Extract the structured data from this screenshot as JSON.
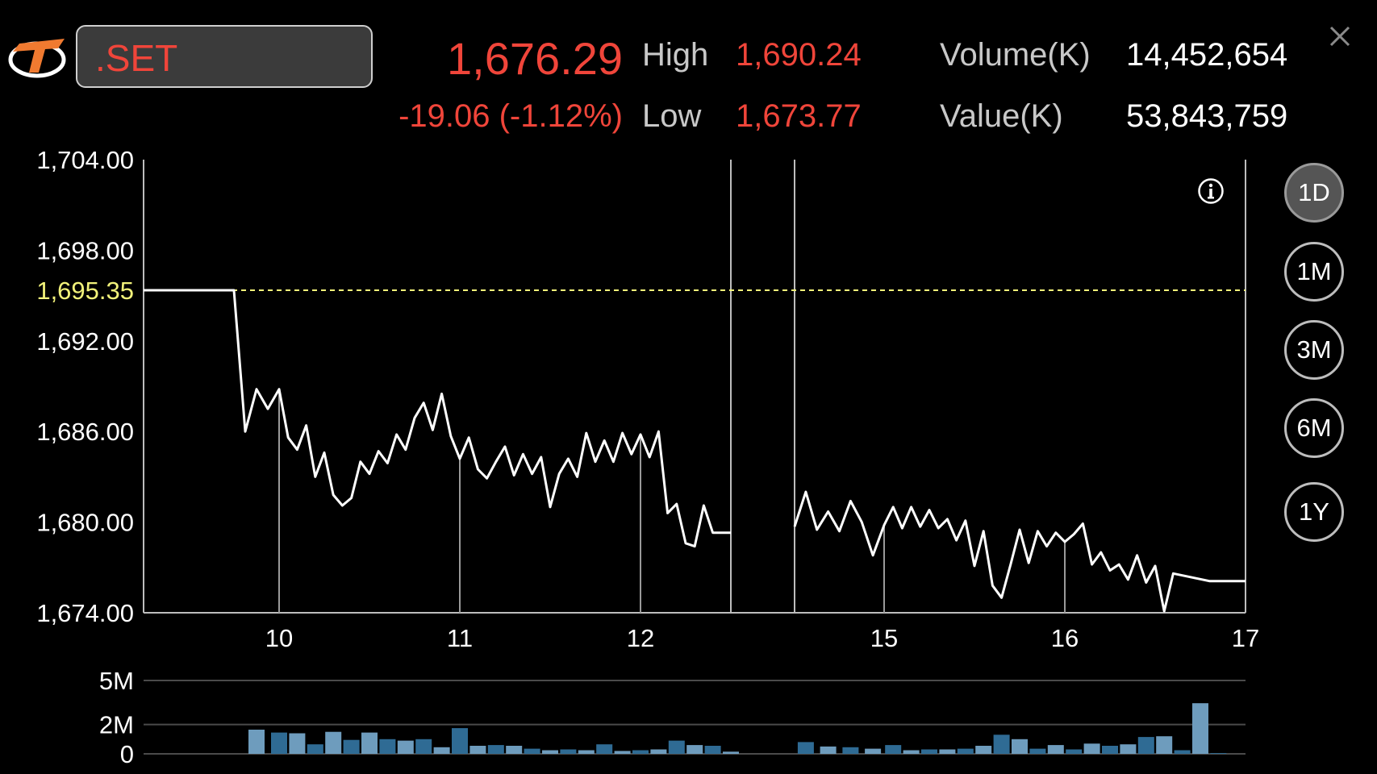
{
  "header": {
    "symbol": ".SET",
    "last": "1,676.29",
    "change": "-19.06 (-1.12%)",
    "high_label": "High",
    "high": "1,690.24",
    "low_label": "Low",
    "low": "1,673.77",
    "volume_label": "Volume(K)",
    "volume": "14,452,654",
    "value_label": "Value(K)",
    "value": "53,843,759"
  },
  "icons": {
    "logo": "brand-logo-icon",
    "close": "close-icon",
    "info": "info-icon"
  },
  "periods": [
    {
      "label": "1D",
      "active": true
    },
    {
      "label": "1M",
      "active": false
    },
    {
      "label": "3M",
      "active": false
    },
    {
      "label": "6M",
      "active": false
    },
    {
      "label": "1Y",
      "active": false
    }
  ],
  "colors": {
    "down": "#f0453a",
    "reference": "#f2f27a",
    "line": "#ffffff",
    "volume_dark": "#2f6b94",
    "volume_light": "#6e9cbd"
  },
  "chart_data": [
    {
      "type": "line",
      "title": "",
      "x_tick_labels": [
        "10",
        "11",
        "12",
        "15",
        "16",
        "17"
      ],
      "y_tick_labels": [
        "1,704.00",
        "1,698.00",
        "1,692.00",
        "1,686.00",
        "1,680.00",
        "1,674.00"
      ],
      "ylim": [
        1674,
        1704
      ],
      "reference_line": {
        "label": "1,695.35",
        "value": 1695.35,
        "style": "dashed"
      },
      "grid": false,
      "series": [
        {
          "segments": [
            {
              "x": [
                9.4,
                9.6,
                9.8,
                9.85,
                9.9,
                9.95,
                10.0,
                10.05,
                10.1,
                10.15,
                10.2,
                10.25,
                10.3,
                10.35,
                10.4,
                10.45,
                10.5,
                10.55,
                10.6,
                10.65,
                10.7,
                10.75,
                10.8,
                10.85,
                10.9,
                10.95,
                11.0,
                11.05,
                11.1,
                11.15,
                11.2,
                11.25,
                11.3,
                11.35,
                11.4,
                11.45,
                11.5,
                11.55,
                11.6,
                11.65,
                11.7,
                11.75,
                11.8,
                11.85,
                11.9,
                11.95,
                12.0,
                12.05,
                12.1,
                12.15,
                12.2,
                12.25,
                12.3,
                12.35,
                12.4,
                12.5
              ],
              "y": [
                1695.35,
                1695.35,
                1695.35,
                1686.0,
                1688.8,
                1687.5,
                1688.8,
                1685.6,
                1684.8,
                1686.4,
                1683.0,
                1684.6,
                1681.8,
                1681.1,
                1681.6,
                1684.0,
                1683.2,
                1684.7,
                1683.9,
                1685.8,
                1684.8,
                1686.9,
                1687.9,
                1686.1,
                1688.5,
                1685.7,
                1684.2,
                1685.6,
                1683.5,
                1682.9,
                1684.0,
                1685.0,
                1683.1,
                1684.5,
                1683.2,
                1684.3,
                1681.0,
                1683.2,
                1684.2,
                1683.0,
                1685.9,
                1684.0,
                1685.4,
                1684.0,
                1685.9,
                1684.5,
                1685.8,
                1684.3,
                1686.0,
                1680.6,
                1681.2,
                1678.6,
                1678.4,
                1681.1,
                1679.3,
                1679.3
              ]
            },
            {
              "x": [
                14.6,
                14.65,
                14.7,
                14.75,
                14.8,
                14.85,
                14.9,
                14.95,
                15.0,
                15.05,
                15.1,
                15.15,
                15.2,
                15.25,
                15.3,
                15.35,
                15.4,
                15.45,
                15.5,
                15.55,
                15.6,
                15.65,
                15.7,
                15.75,
                15.8,
                15.85,
                15.9,
                15.95,
                16.0,
                16.05,
                16.1,
                16.15,
                16.2,
                16.25,
                16.3,
                16.35,
                16.4,
                16.45,
                16.5,
                16.55,
                16.6,
                16.8,
                17.0
              ],
              "y": [
                1679.7,
                1682.0,
                1679.5,
                1680.7,
                1679.4,
                1681.4,
                1680.0,
                1677.8,
                1679.8,
                1681.0,
                1679.6,
                1681.0,
                1679.7,
                1680.8,
                1679.6,
                1680.2,
                1678.8,
                1680.1,
                1677.1,
                1679.4,
                1675.8,
                1675.0,
                1677.2,
                1679.5,
                1677.3,
                1679.4,
                1678.4,
                1679.3,
                1678.7,
                1679.2,
                1679.9,
                1677.2,
                1678.0,
                1676.8,
                1677.2,
                1676.2,
                1677.8,
                1676.0,
                1677.1,
                1674.1,
                1676.6,
                1676.1,
                1676.1
              ]
            }
          ]
        }
      ]
    },
    {
      "type": "bar",
      "title": "",
      "y_tick_labels": [
        "5M",
        "2M",
        "0"
      ],
      "ylim": [
        0,
        5
      ],
      "grid": true,
      "bars": [
        {
          "x": 9.9,
          "v": 1.65
        },
        {
          "x": 10.0,
          "v": 1.45
        },
        {
          "x": 10.1,
          "v": 1.4
        },
        {
          "x": 10.2,
          "v": 0.65
        },
        {
          "x": 10.3,
          "v": 1.5
        },
        {
          "x": 10.4,
          "v": 0.95
        },
        {
          "x": 10.5,
          "v": 1.45
        },
        {
          "x": 10.6,
          "v": 1.0
        },
        {
          "x": 10.7,
          "v": 0.9
        },
        {
          "x": 10.8,
          "v": 1.0
        },
        {
          "x": 10.9,
          "v": 0.45
        },
        {
          "x": 11.0,
          "v": 1.75
        },
        {
          "x": 11.1,
          "v": 0.55
        },
        {
          "x": 11.2,
          "v": 0.6
        },
        {
          "x": 11.3,
          "v": 0.55
        },
        {
          "x": 11.4,
          "v": 0.35
        },
        {
          "x": 11.5,
          "v": 0.25
        },
        {
          "x": 11.6,
          "v": 0.3
        },
        {
          "x": 11.7,
          "v": 0.25
        },
        {
          "x": 11.8,
          "v": 0.65
        },
        {
          "x": 11.9,
          "v": 0.2
        },
        {
          "x": 12.0,
          "v": 0.25
        },
        {
          "x": 12.1,
          "v": 0.3
        },
        {
          "x": 12.2,
          "v": 0.9
        },
        {
          "x": 12.3,
          "v": 0.6
        },
        {
          "x": 12.4,
          "v": 0.55
        },
        {
          "x": 12.5,
          "v": 0.15
        },
        {
          "x": 14.65,
          "v": 0.8
        },
        {
          "x": 14.75,
          "v": 0.5
        },
        {
          "x": 14.85,
          "v": 0.45
        },
        {
          "x": 14.95,
          "v": 0.35
        },
        {
          "x": 15.05,
          "v": 0.6
        },
        {
          "x": 15.15,
          "v": 0.25
        },
        {
          "x": 15.25,
          "v": 0.3
        },
        {
          "x": 15.35,
          "v": 0.3
        },
        {
          "x": 15.45,
          "v": 0.35
        },
        {
          "x": 15.55,
          "v": 0.55
        },
        {
          "x": 15.65,
          "v": 1.3
        },
        {
          "x": 15.75,
          "v": 1.0
        },
        {
          "x": 15.85,
          "v": 0.35
        },
        {
          "x": 15.95,
          "v": 0.6
        },
        {
          "x": 16.05,
          "v": 0.3
        },
        {
          "x": 16.15,
          "v": 0.7
        },
        {
          "x": 16.25,
          "v": 0.55
        },
        {
          "x": 16.35,
          "v": 0.65
        },
        {
          "x": 16.45,
          "v": 1.15
        },
        {
          "x": 16.55,
          "v": 1.2
        },
        {
          "x": 16.65,
          "v": 0.25
        },
        {
          "x": 16.75,
          "v": 3.45
        },
        {
          "x": 16.85,
          "v": 0.05
        }
      ]
    }
  ]
}
